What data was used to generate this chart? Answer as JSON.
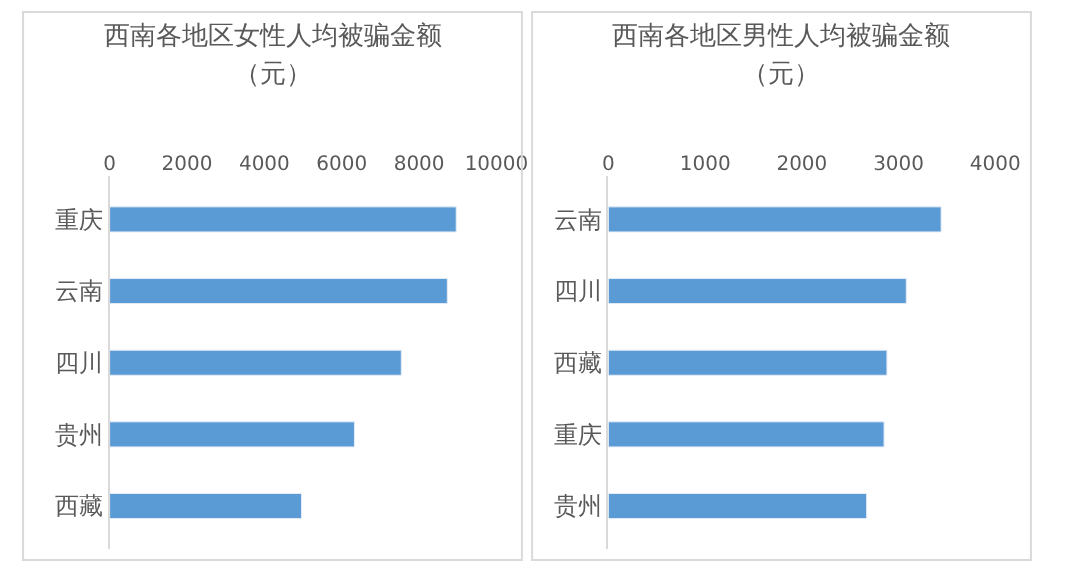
{
  "chart_data": [
    {
      "type": "bar",
      "orientation": "horizontal",
      "title": "西南各地区女性人均被骗金额",
      "subtitle": "（元）",
      "categories": [
        "重庆",
        "云南",
        "四川",
        "贵州",
        "西藏"
      ],
      "values": [
        8960,
        8730,
        7540,
        6330,
        4960
      ],
      "color": "#5b9bd5",
      "xlim": [
        0,
        10000
      ],
      "xticks": [
        0,
        2000,
        4000,
        6000,
        8000,
        10000
      ],
      "grid": false
    },
    {
      "type": "bar",
      "orientation": "horizontal",
      "title": "西南各地区男性人均被骗金额",
      "subtitle": "（元）",
      "categories": [
        "云南",
        "四川",
        "西藏",
        "重庆",
        "贵州"
      ],
      "values": [
        3440,
        3080,
        2880,
        2850,
        2670
      ],
      "color": "#5b9bd5",
      "xlim": [
        0,
        4000
      ],
      "xticks": [
        0,
        1000,
        2000,
        3000,
        4000
      ],
      "grid": false
    }
  ]
}
